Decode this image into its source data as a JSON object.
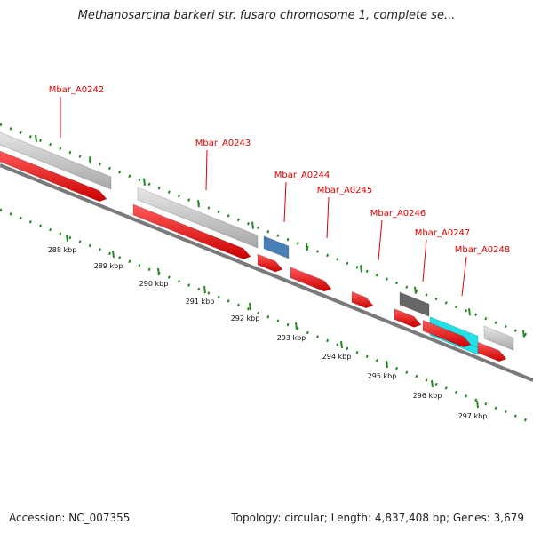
{
  "title": "Methanosarcina barkeri str. fusaro chromosome 1, complete se...",
  "footer": {
    "accession": "Accession: NC_007355",
    "summary": "Topology: circular; Length: 4,837,408 bp; Genes: 3,679"
  },
  "colors": {
    "cds": "#ff1a1a",
    "gene": "#c8c8c8",
    "other_blue": "#4a7fb5",
    "other_dark": "#666666",
    "other_cyan": "#22e0e8",
    "label": "#e00000",
    "ticks": "#228822",
    "backbone": "#7a7a7a"
  },
  "gene_labels": [
    "Mbar_A0242",
    "Mbar_A0243",
    "Mbar_A0244",
    "Mbar_A0245",
    "Mbar_A0246",
    "Mbar_A0247",
    "Mbar_A0248"
  ],
  "tick_labels": [
    "288 kbp",
    "289 kbp",
    "290 kbp",
    "291 kbp",
    "292 kbp",
    "293 kbp",
    "294 kbp",
    "295 kbp",
    "296 kbp",
    "297 kbp"
  ]
}
